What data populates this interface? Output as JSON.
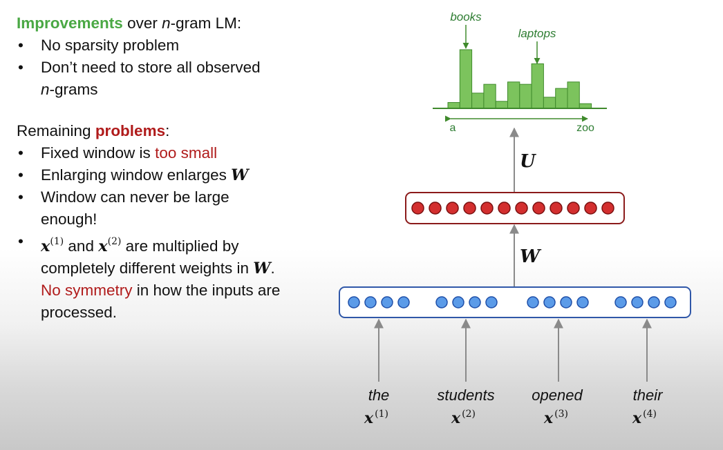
{
  "improvements": {
    "heading_green": "Improvements",
    "heading_rest_a": " over ",
    "heading_n": "n",
    "heading_rest_b": "-gram LM:",
    "bullet": "•",
    "item1": "No sparsity problem",
    "item2_line1": "Don’t need to store all observed",
    "item2_n": "n",
    "item2_line2_rest": "-grams"
  },
  "remaining": {
    "heading_a": "Remaining ",
    "heading_red": "problems",
    "heading_b": ":",
    "item1_a": "Fixed window is ",
    "item1_red": "too small",
    "item2_a": "Enlarging window enlarges ",
    "item2_W": "W",
    "item3_line1": "Window can never be large",
    "item3_line2": "enough!",
    "item4_x": "x",
    "item4_sup1": "(1)",
    "item4_and": " and ",
    "item4_sup2": "(2)",
    "item4_rest": " are multiplied by",
    "item4_line2_a": "completely different weights in ",
    "item4_line2_W": "W",
    "item4_line2_end": ".",
    "item4_line3_red": "No symmetry",
    "item4_line3_rest": " in how the inputs are",
    "item4_line4": "processed."
  },
  "diagram": {
    "dist_labels": {
      "books": "books",
      "laptops": "laptops",
      "axis_start": "a",
      "axis_end": "zoo"
    },
    "U_label": "U",
    "W_label": "W",
    "words": [
      {
        "word": "the",
        "x": "x",
        "sup": "(1)"
      },
      {
        "word": "students",
        "x": "x",
        "sup": "(2)"
      },
      {
        "word": "opened",
        "x": "x",
        "sup": "(3)"
      },
      {
        "word": "their",
        "x": "x",
        "sup": "(4)"
      }
    ],
    "hidden_neurons": 12,
    "input_neurons_per_word": 4,
    "histogram_bars": [
      0.1,
      1.0,
      0.26,
      0.41,
      0.12,
      0.45,
      0.41,
      0.76,
      0.19,
      0.34,
      0.45,
      0.08
    ],
    "colors": {
      "bar_fill": "#7cc35d",
      "bar_stroke": "#3f8a2c",
      "hidden_fill": "#d32f2f",
      "hidden_stroke": "#7a1010",
      "hidden_box": "#8b1a1a",
      "input_fill": "#5b9be8",
      "input_stroke": "#1f4fa8",
      "input_box": "#2f57a8",
      "arrow": "#8a8a8a",
      "axis": "#3f8a2c"
    }
  }
}
